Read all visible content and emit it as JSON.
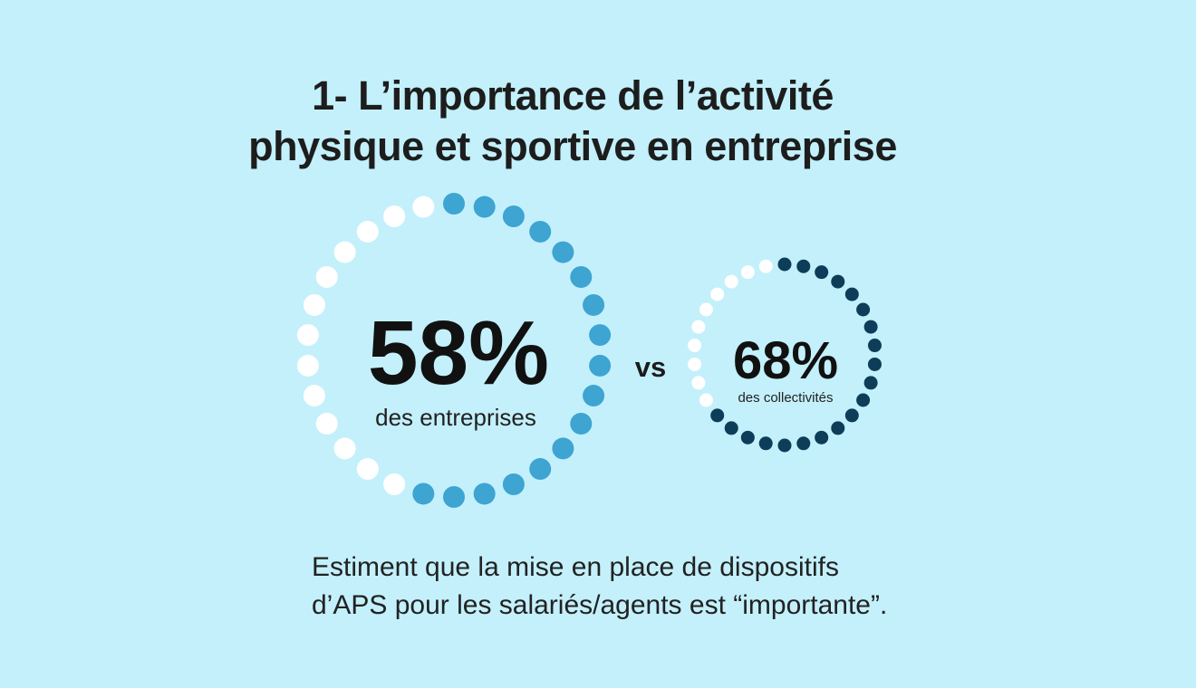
{
  "title": {
    "line1": "1- L’importance de l’activité",
    "line2": "physique et sportive en entreprise"
  },
  "vs_label": "vs",
  "caption": {
    "line1": "Estiment que la mise en place de dispositifs",
    "line2": "d’APS pour les salariés/agents est “importante”."
  },
  "colors": {
    "background": "#c3f0fb",
    "dot_empty": "#ffffff",
    "dot_entreprises": "#3ea4d2",
    "dot_collectivites": "#0d3d58"
  },
  "chart_data": [
    {
      "type": "pie",
      "value": 58,
      "value_label": "58%",
      "label": "des entreprises",
      "color": "#3ea4d2"
    },
    {
      "type": "pie",
      "value": 68,
      "value_label": "68%",
      "label": "des collectivités",
      "color": "#0d3d58"
    }
  ]
}
